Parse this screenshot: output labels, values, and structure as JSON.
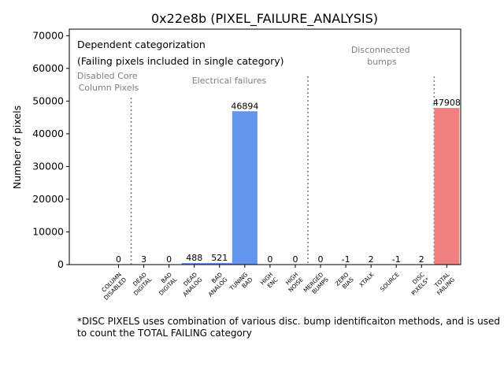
{
  "chart_data": {
    "type": "bar",
    "title": "0x22e8b (PIXEL_FAILURE_ANALYSIS)",
    "xlabel": "",
    "ylabel": "Number of pixels",
    "ylim": [
      0,
      72000
    ],
    "yticks": [
      0,
      10000,
      20000,
      30000,
      40000,
      50000,
      60000,
      70000
    ],
    "grid": false,
    "categories": [
      "COLUMN DISABLED",
      "DEAD DIGITAL",
      "BAD DIGITAL",
      "DEAD ANALOG",
      "BAD ANALOG",
      "TUNING BAD",
      "HIGH ENC",
      "HIGH NOISE",
      "MERGED BUMPS",
      "ZERO BIAS",
      "XTALK",
      "SOURCE",
      "DISC PIXELS*",
      "TOTAL FAILING"
    ],
    "tick_labels": [
      [
        "COLUMN",
        "DISABLED"
      ],
      [
        "DEAD",
        "DIGITAL"
      ],
      [
        "BAD",
        "DIGITAL"
      ],
      [
        "DEAD",
        "ANALOG"
      ],
      [
        "BAD",
        "ANALOG"
      ],
      [
        "TUNING",
        "BAD"
      ],
      [
        "HIGH",
        "ENC"
      ],
      [
        "HIGH",
        "NOISE"
      ],
      [
        "MERGED",
        "BUMPS"
      ],
      [
        "ZERO",
        "BIAS"
      ],
      [
        "XTALK"
      ],
      [
        "SOURCE"
      ],
      [
        "DISC",
        "PIXELS*"
      ],
      [
        "TOTAL",
        "FAILING"
      ]
    ],
    "values": [
      0,
      3,
      0,
      488,
      521,
      46894,
      0,
      0,
      0,
      -1,
      2,
      -1,
      2,
      47908
    ],
    "bar_colors": [
      "#6495ed",
      "#6495ed",
      "#6495ed",
      "#6495ed",
      "#6495ed",
      "#6495ed",
      "#6495ed",
      "#6495ed",
      "#6495ed",
      "#6495ed",
      "#6495ed",
      "#6495ed",
      "#6495ed",
      "#f08080"
    ],
    "separators_after_index": [
      0,
      7,
      12
    ],
    "annotations": {
      "legend_line1": "Dependent categorization",
      "legend_line2": "(Failing pixels included in single category)",
      "disabled_core": [
        "Disabled Core",
        "Column Pixels"
      ],
      "electrical": "Electrical failures",
      "disconnected": [
        "Disconnected",
        "bumps"
      ]
    }
  },
  "footnote": "*DISC PIXELS uses combination of various disc. bump identificaiton methods, and is used to count the TOTAL FAILING category"
}
